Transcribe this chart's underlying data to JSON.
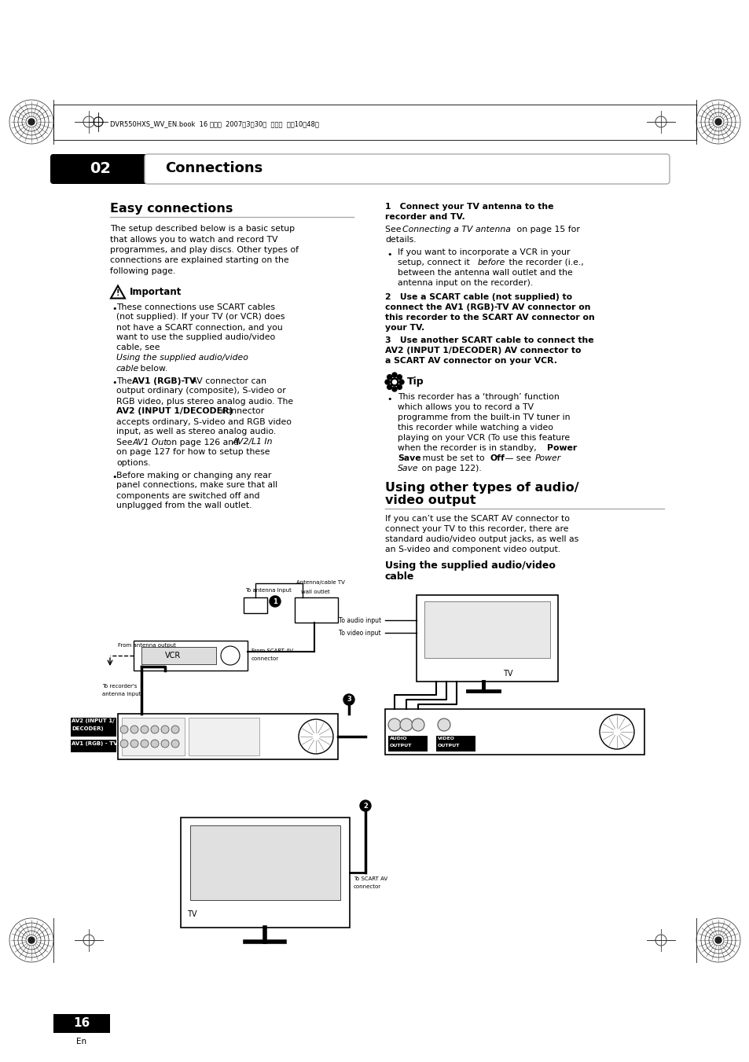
{
  "bg_color": "#ffffff",
  "page_width": 9.54,
  "page_height": 13.51,
  "header_text": "DVR550HXS_WV_EN.book  16 ページ  2007年3月30日  金曜日  午前10晈48分",
  "chapter_num": "02",
  "chapter_title": "Connections",
  "section1_title": "Easy connections",
  "section1_body": "The setup described below is a basic setup\nthat allows you to watch and record TV\nprogrammes, and play discs. Other types of\nconnections are explained starting on the\nfollowing page.",
  "important_title": "Important",
  "imp_bullet1_plain": "These connections use SCART cables\n(not supplied). If your TV (or VCR) does\nnot have a SCART connection, and you\nwant to use the supplied audio/video\ncable, see ",
  "imp_bullet1_italic": "Using the supplied audio/video\ncable",
  "imp_bullet1_end": " below.",
  "imp_bullet2_start": "The ",
  "imp_bullet2_bold1": "AV1 (RGB)-TV",
  "imp_bullet2_mid1": " AV connector can\noutput ordinary (composite), S-video or\nRGB video, plus stereo analog audio. The\n",
  "imp_bullet2_bold2": "AV2 (INPUT 1/DECODER)",
  "imp_bullet2_mid2": " connector\naccepts ordinary, S-video and RGB video\ninput, as well as stereo analog audio.\nSee ",
  "imp_bullet2_italic1": "AV1 Out",
  "imp_bullet2_mid3": " on page 126 and ",
  "imp_bullet2_italic2": "AV2/L1 In",
  "imp_bullet2_end": "\non page 127 for how to setup these\noptions.",
  "imp_bullet3": "Before making or changing any rear\npanel connections, make sure that all\ncomponents are switched off and\nunplugged from the wall outlet.",
  "step1_bold": "1   Connect your TV antenna to the\nrecorder and TV.",
  "step1_see_plain1": "See ",
  "step1_see_italic": "Connecting a TV antenna",
  "step1_see_plain2": " on page 15 for\ndetails.",
  "step1_bullet": "If you want to incorporate a VCR in your\nsetup, connect it ",
  "step1_bullet_italic": "before",
  "step1_bullet_end": " the recorder (i.e.,\nbetween the antenna wall outlet and the\nantenna input on the recorder).",
  "step2_bold": "2   Use a SCART cable (not supplied) to\nconnect the AV1 (RGB)-TV AV connector on\nthis recorder to the SCART AV connector on\nyour TV.",
  "step3_bold": "3   Use another SCART cable to connect the\nAV2 (INPUT 1/DECODER) AV connector to\na SCART AV connector on your VCR.",
  "tip_title": "Tip",
  "tip_bullet": "This recorder has a ‘through’ function\nwhich allows you to record a TV\nprogramme from the built-in TV tuner in\nthis recorder while watching a video\nplaying on your VCR (To use this feature\nwhen the recorder is in standby, ",
  "tip_bullet_bold1": "Power\nSave",
  "tip_bullet_mid": " must be set to ",
  "tip_bullet_bold2": "Off",
  "tip_bullet_end": " — see ",
  "tip_bullet_italic": "Power\nSave",
  "tip_bullet_final": " on page 122).",
  "sec2_title1": "Using other types of audio/",
  "sec2_title2": "video output",
  "sec2_body": "If you can’t use the SCART AV connector to\nconnect your TV to this recorder, there are\nstandard audio/video output jacks, as well as\nan S-video and component video output.",
  "sec2_sub1": "Using the supplied audio/video",
  "sec2_sub2": "cable",
  "page_num": "16"
}
